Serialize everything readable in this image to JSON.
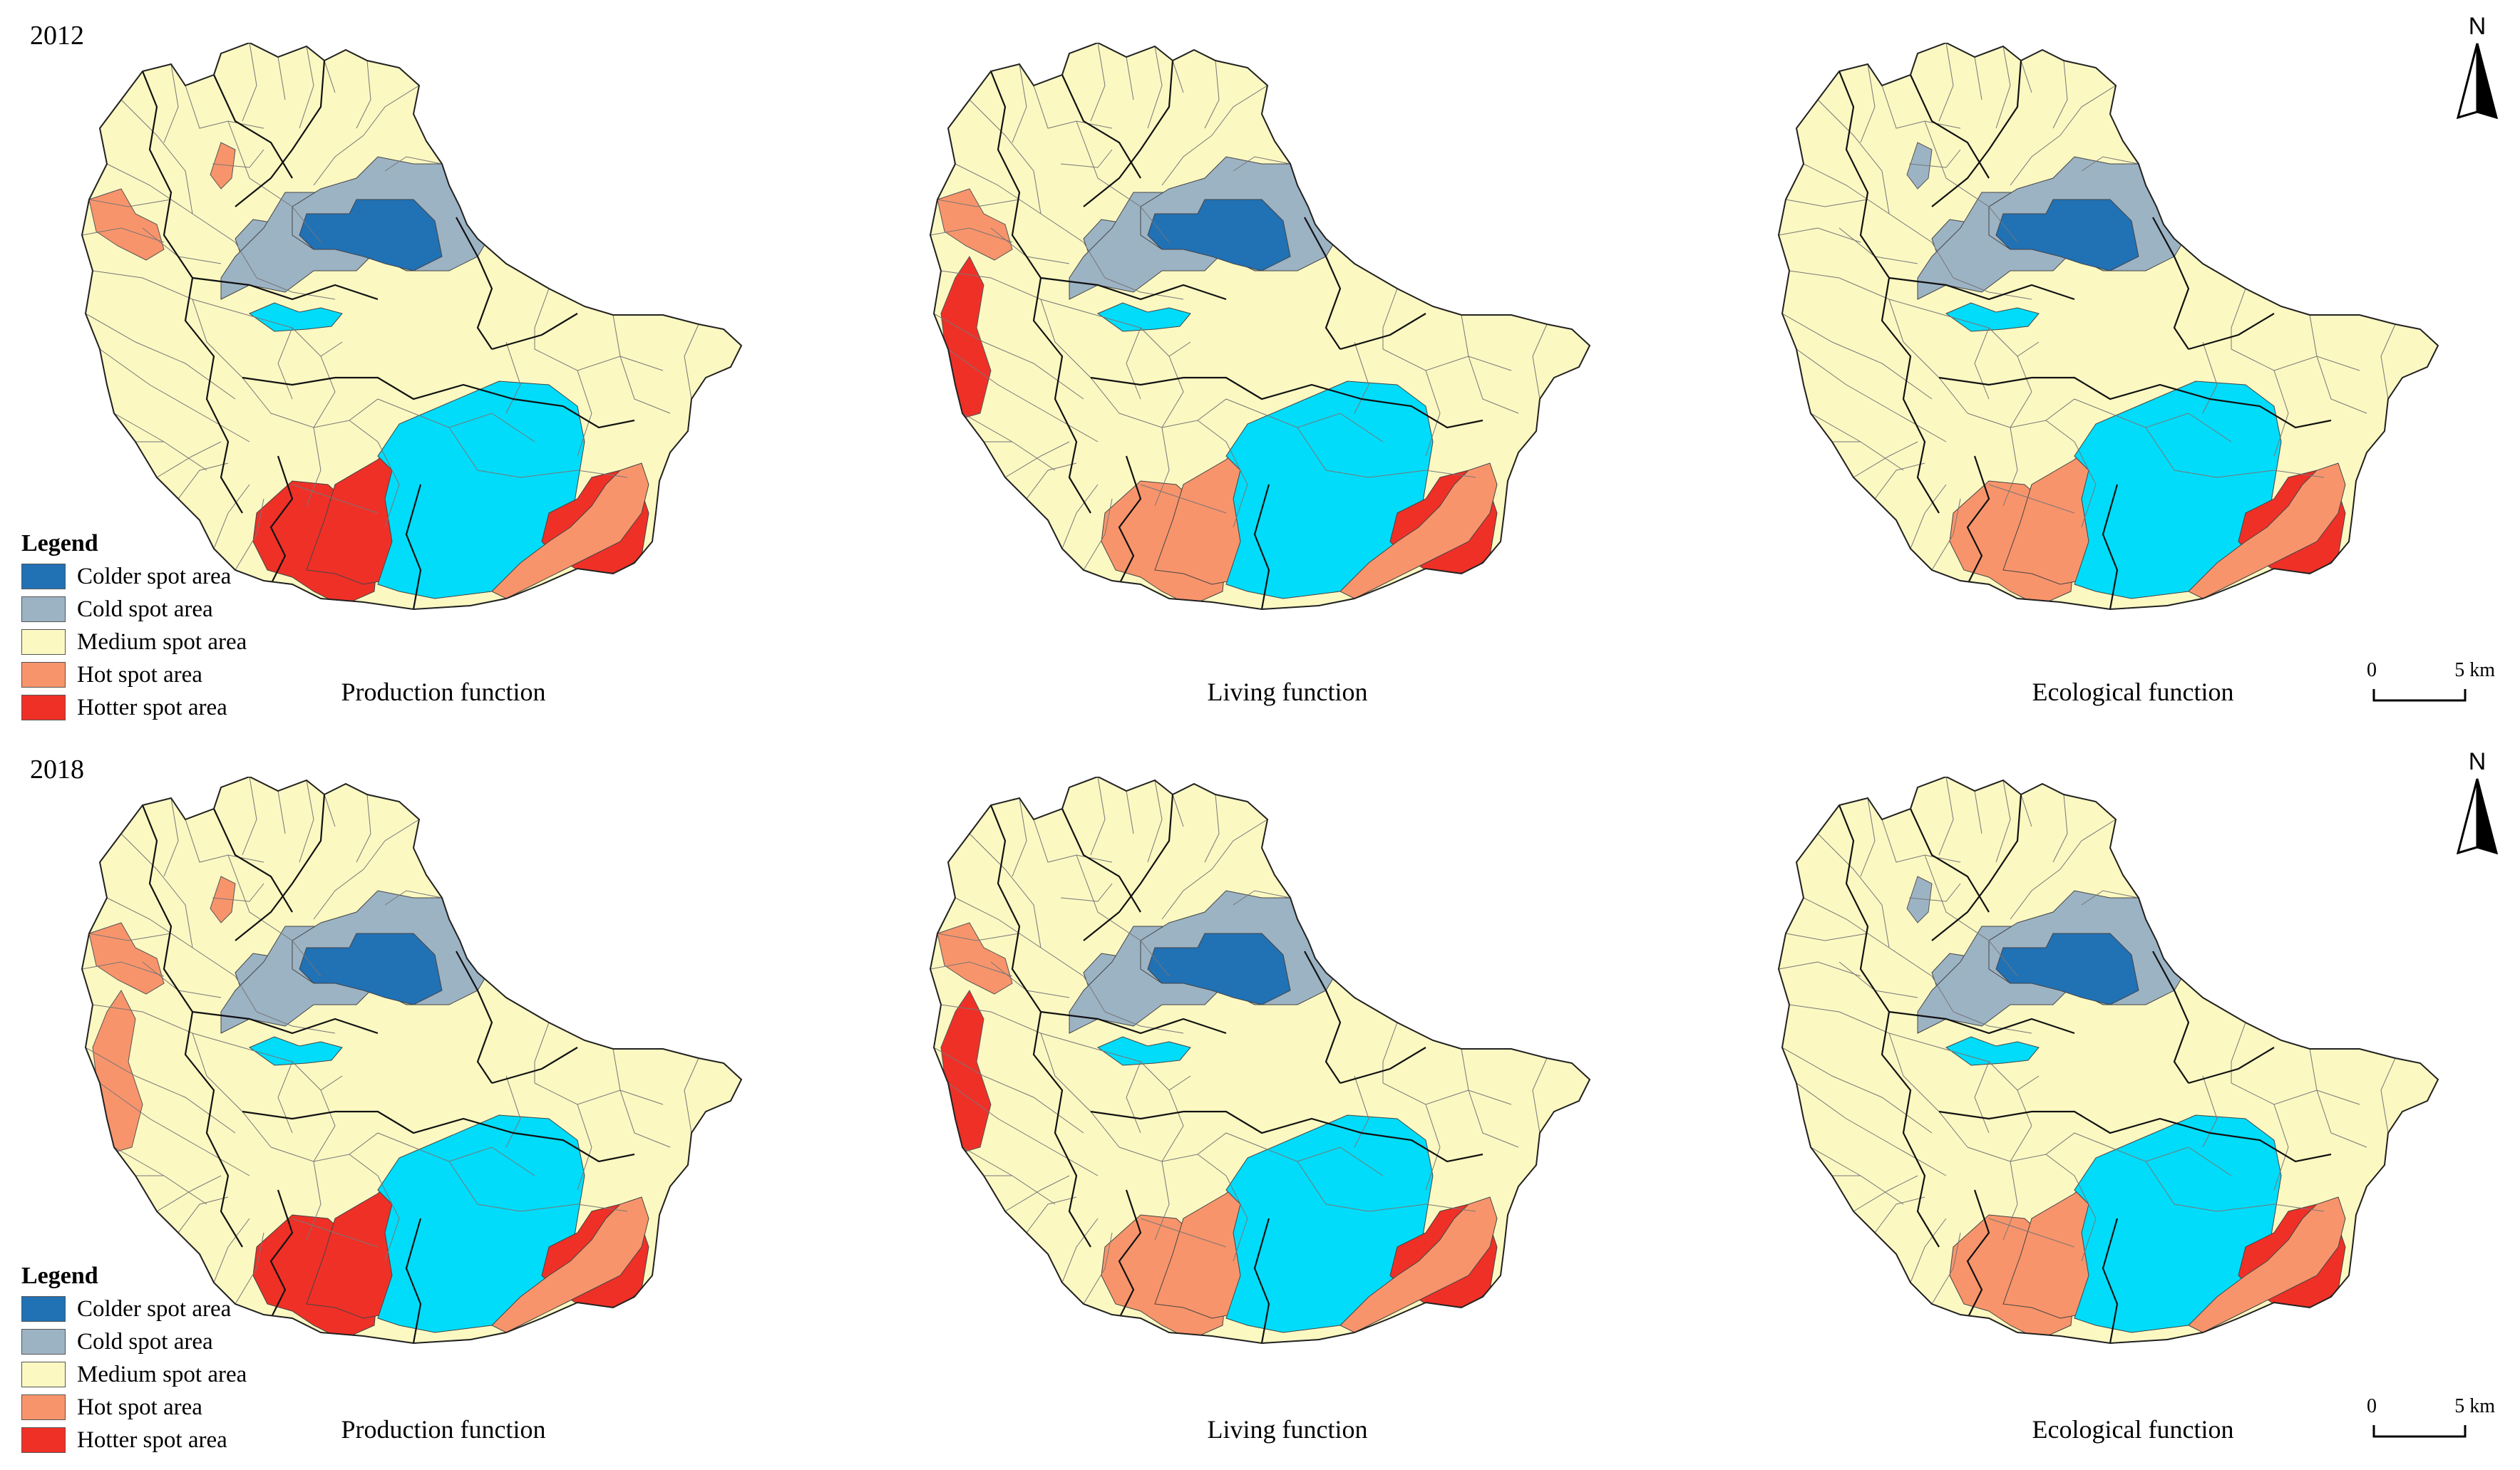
{
  "rows": [
    {
      "year": "2012",
      "panels": [
        {
          "caption": "Production function",
          "hotspots": {
            "west": "hot",
            "north": "hot",
            "far_west": "none",
            "sw_small": "none",
            "cold_ring": "cold_partial",
            "south_left": "hotter",
            "south_right": "hotter"
          }
        },
        {
          "caption": "Living function",
          "hotspots": {
            "west": "hot",
            "north": "none",
            "far_west": "hotter",
            "sw_small": "hotter",
            "cold_ring": "cold",
            "south_left": "hot",
            "south_right": "hotter"
          }
        },
        {
          "caption": "Ecological function",
          "hotspots": {
            "west": "none",
            "north": "cold",
            "far_west": "none",
            "sw_small": "none",
            "cold_ring": "cold",
            "south_left": "hot",
            "south_right": "hotter"
          }
        }
      ]
    },
    {
      "year": "2018",
      "panels": [
        {
          "caption": "Production function",
          "hotspots": {
            "west": "hot",
            "north": "hot",
            "far_west": "hot",
            "sw_small": "none",
            "cold_ring": "cold",
            "south_left": "hotter",
            "south_right": "hotter"
          }
        },
        {
          "caption": "Living function",
          "hotspots": {
            "west": "hot",
            "north": "none",
            "far_west": "hotter",
            "sw_small": "hotter",
            "cold_ring": "cold",
            "south_left": "hot",
            "south_right": "hotter"
          }
        },
        {
          "caption": "Ecological function",
          "hotspots": {
            "west": "none",
            "north": "cold",
            "far_west": "none",
            "sw_small": "none",
            "cold_ring": "cold",
            "south_left": "hot",
            "south_right": "hotter"
          }
        }
      ]
    }
  ],
  "legend": {
    "title": "Legend",
    "items": [
      {
        "label": "Colder spot area",
        "color": "#2171b5"
      },
      {
        "label": "Cold spot area",
        "color": "#9cb3c4"
      },
      {
        "label": "Medium spot area",
        "color": "#fbf8c2"
      },
      {
        "label": "Hot spot area",
        "color": "#f8946b"
      },
      {
        "label": "Hotter spot area",
        "color": "#ef3027"
      }
    ]
  },
  "water_color": "#00dcfa",
  "north_label": "N",
  "scale": {
    "start": "0",
    "end": "5 km"
  }
}
